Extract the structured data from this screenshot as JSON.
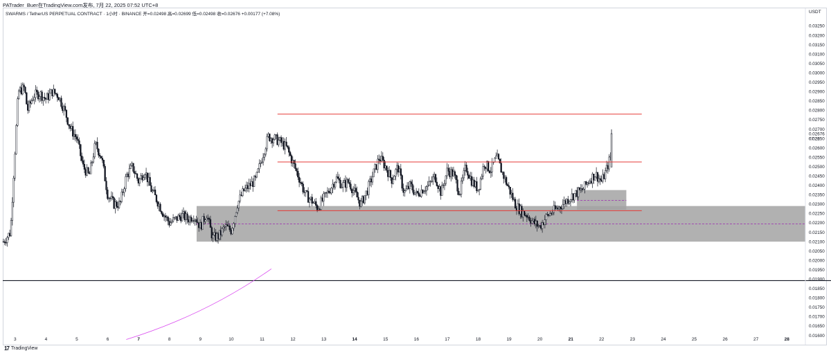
{
  "header": {
    "author_line": "PATrader_Buer在TradingView.com发布, 7月 22, 2025 07:52 UTC+8"
  },
  "legend": {
    "text": "SWARMS / TetherUS PERPETUAL CONTRACT · 1小时 · BINANCE  开=0.02498  高=0.02699  低=0.02498  收=0.02676  +0.00177 (+7.08%)"
  },
  "currency": "USDT",
  "footer": {
    "brand": "TradingView",
    "brand_mark": "17"
  },
  "colors": {
    "candle": "#131722",
    "resistance_line": "#e53935",
    "zone_fill": "#a3a3a3",
    "midline": "#9c27b0",
    "curve": "#d946ef",
    "horizontal_line": "#131722"
  },
  "chart_data": {
    "type": "candlestick",
    "title": "",
    "xlabel": "",
    "ylabel": "",
    "ylim": [
      0.0158,
      0.033
    ],
    "x_range_days": [
      2.6,
      28.6
    ],
    "x_ticks": [
      {
        "day": 3,
        "label": "3",
        "bold": false
      },
      {
        "day": 4,
        "label": "4",
        "bold": false
      },
      {
        "day": 5,
        "label": "5",
        "bold": false
      },
      {
        "day": 6,
        "label": "6",
        "bold": false
      },
      {
        "day": 7,
        "label": "7",
        "bold": true
      },
      {
        "day": 8,
        "label": "8",
        "bold": false
      },
      {
        "day": 9,
        "label": "9",
        "bold": false
      },
      {
        "day": 10,
        "label": "10",
        "bold": false
      },
      {
        "day": 11,
        "label": "11",
        "bold": false
      },
      {
        "day": 12,
        "label": "12",
        "bold": false
      },
      {
        "day": 13,
        "label": "13",
        "bold": false
      },
      {
        "day": 14,
        "label": "14",
        "bold": true
      },
      {
        "day": 15,
        "label": "15",
        "bold": false
      },
      {
        "day": 16,
        "label": "16",
        "bold": false
      },
      {
        "day": 17,
        "label": "17",
        "bold": false
      },
      {
        "day": 18,
        "label": "18",
        "bold": false
      },
      {
        "day": 19,
        "label": "19",
        "bold": false
      },
      {
        "day": 20,
        "label": "20",
        "bold": false
      },
      {
        "day": 21,
        "label": "21",
        "bold": true
      },
      {
        "day": 22,
        "label": "22",
        "bold": false
      },
      {
        "day": 23,
        "label": "23",
        "bold": false
      },
      {
        "day": 24,
        "label": "24",
        "bold": false
      },
      {
        "day": 25,
        "label": "25",
        "bold": false
      },
      {
        "day": 26,
        "label": "26",
        "bold": false
      },
      {
        "day": 27,
        "label": "27",
        "bold": false
      },
      {
        "day": 28,
        "label": "28",
        "bold": true
      }
    ],
    "y_ticks": [
      "0.03250",
      "0.03200",
      "0.03150",
      "0.03100",
      "0.03050",
      "0.03000",
      "0.02950",
      "0.02900",
      "0.02850",
      "0.02800",
      "0.02750",
      "0.02700",
      "0.02650",
      "0.02600",
      "0.02550",
      "0.02500",
      "0.02450",
      "0.02400",
      "0.02350",
      "0.02300",
      "0.02250",
      "0.02200",
      "0.02150",
      "0.02100",
      "0.02050",
      "0.02000",
      "0.01950",
      "0.01900",
      "0.01850",
      "0.01800",
      "0.01750",
      "0.01700",
      "0.01650",
      "0.01600"
    ],
    "y_tick_values": [
      0.0325,
      0.032,
      0.0315,
      0.031,
      0.0305,
      0.03,
      0.0295,
      0.029,
      0.0285,
      0.028,
      0.0275,
      0.027,
      0.0265,
      0.026,
      0.0255,
      0.025,
      0.0245,
      0.024,
      0.0235,
      0.023,
      0.0225,
      0.022,
      0.0215,
      0.021,
      0.0205,
      0.02,
      0.0195,
      0.019,
      0.0185,
      0.018,
      0.0175,
      0.017,
      0.0165,
      0.016
    ],
    "last_price": {
      "value": 0.02676,
      "label": "0.02676",
      "countdown": "07:22"
    },
    "path": [
      [
        2.62,
        0.021
      ],
      [
        2.85,
        0.0215
      ],
      [
        3.0,
        0.026
      ],
      [
        3.1,
        0.029
      ],
      [
        3.3,
        0.0292
      ],
      [
        3.4,
        0.028
      ],
      [
        3.6,
        0.0288
      ],
      [
        3.8,
        0.0289
      ],
      [
        4.0,
        0.0286
      ],
      [
        4.2,
        0.029
      ],
      [
        4.4,
        0.0288
      ],
      [
        4.6,
        0.028
      ],
      [
        4.8,
        0.027
      ],
      [
        5.0,
        0.0265
      ],
      [
        5.2,
        0.025
      ],
      [
        5.4,
        0.0245
      ],
      [
        5.6,
        0.0262
      ],
      [
        5.8,
        0.0255
      ],
      [
        6.0,
        0.0235
      ],
      [
        6.2,
        0.023
      ],
      [
        6.4,
        0.023
      ],
      [
        6.6,
        0.0245
      ],
      [
        6.8,
        0.025
      ],
      [
        7.0,
        0.0242
      ],
      [
        7.2,
        0.0248
      ],
      [
        7.4,
        0.0238
      ],
      [
        7.6,
        0.0232
      ],
      [
        7.8,
        0.0225
      ],
      [
        8.0,
        0.022
      ],
      [
        8.2,
        0.0222
      ],
      [
        8.4,
        0.0224
      ],
      [
        8.6,
        0.0222
      ],
      [
        8.8,
        0.0224
      ],
      [
        9.0,
        0.0218
      ],
      [
        9.2,
        0.0225
      ],
      [
        9.4,
        0.0212
      ],
      [
        9.6,
        0.0213
      ],
      [
        9.8,
        0.0218
      ],
      [
        10.0,
        0.0216
      ],
      [
        10.2,
        0.023
      ],
      [
        10.4,
        0.0237
      ],
      [
        10.6,
        0.024
      ],
      [
        10.8,
        0.0243
      ],
      [
        11.0,
        0.0255
      ],
      [
        11.2,
        0.0266
      ],
      [
        11.4,
        0.0265
      ],
      [
        11.6,
        0.0263
      ],
      [
        11.8,
        0.026
      ],
      [
        12.0,
        0.0252
      ],
      [
        12.2,
        0.0244
      ],
      [
        12.4,
        0.0235
      ],
      [
        12.6,
        0.0232
      ],
      [
        12.8,
        0.0228
      ],
      [
        13.0,
        0.0233
      ],
      [
        13.2,
        0.0238
      ],
      [
        13.4,
        0.0244
      ],
      [
        13.6,
        0.024
      ],
      [
        13.8,
        0.0242
      ],
      [
        14.0,
        0.0236
      ],
      [
        14.2,
        0.023
      ],
      [
        14.4,
        0.0237
      ],
      [
        14.6,
        0.0246
      ],
      [
        14.8,
        0.0255
      ],
      [
        15.0,
        0.025
      ],
      [
        15.2,
        0.0243
      ],
      [
        15.4,
        0.025
      ],
      [
        15.6,
        0.0236
      ],
      [
        15.8,
        0.024
      ],
      [
        16.0,
        0.0235
      ],
      [
        16.2,
        0.0238
      ],
      [
        16.4,
        0.024
      ],
      [
        16.6,
        0.0245
      ],
      [
        16.8,
        0.0236
      ],
      [
        17.0,
        0.0248
      ],
      [
        17.2,
        0.0246
      ],
      [
        17.4,
        0.0236
      ],
      [
        17.6,
        0.025
      ],
      [
        17.8,
        0.0242
      ],
      [
        18.0,
        0.0238
      ],
      [
        18.2,
        0.0252
      ],
      [
        18.4,
        0.0248
      ],
      [
        18.6,
        0.0255
      ],
      [
        18.8,
        0.0246
      ],
      [
        19.0,
        0.0238
      ],
      [
        19.2,
        0.023
      ],
      [
        19.4,
        0.0226
      ],
      [
        19.6,
        0.0224
      ],
      [
        19.8,
        0.022
      ],
      [
        20.0,
        0.0218
      ],
      [
        20.2,
        0.0223
      ],
      [
        20.4,
        0.0226
      ],
      [
        20.6,
        0.0228
      ],
      [
        20.8,
        0.0231
      ],
      [
        21.0,
        0.0234
      ],
      [
        21.2,
        0.0236
      ],
      [
        21.4,
        0.0238
      ],
      [
        21.6,
        0.0243
      ],
      [
        21.8,
        0.0246
      ],
      [
        22.0,
        0.0242
      ],
      [
        22.15,
        0.0248
      ],
      [
        22.3,
        0.0256
      ]
    ],
    "last_candle": {
      "day": 22.32,
      "open": 0.02498,
      "high": 0.02699,
      "low": 0.02498,
      "close": 0.02676
    },
    "annotations": {
      "resistance_lines": [
        {
          "y": 0.0278,
          "x_start": 11.5,
          "x_end": 23.3
        },
        {
          "y": 0.02525,
          "x_start": 11.5,
          "x_end": 23.3
        },
        {
          "y": 0.02265,
          "x_start": 11.5,
          "x_end": 23.3
        }
      ],
      "zones": [
        {
          "y_top": 0.0229,
          "y_bottom": 0.021,
          "x_start": 8.88,
          "x_end": 28.6,
          "midline": 0.02195
        },
        {
          "y_top": 0.02375,
          "y_bottom": 0.0227,
          "x_start": 21.2,
          "x_end": 22.8,
          "midline": 0.0232
        }
      ],
      "horizontal_line": {
        "y": 0.01892
      },
      "curve": {
        "x_start": 6.6,
        "y_start": 0.01578,
        "x_end": 11.3,
        "y_end": 0.01955
      }
    }
  }
}
